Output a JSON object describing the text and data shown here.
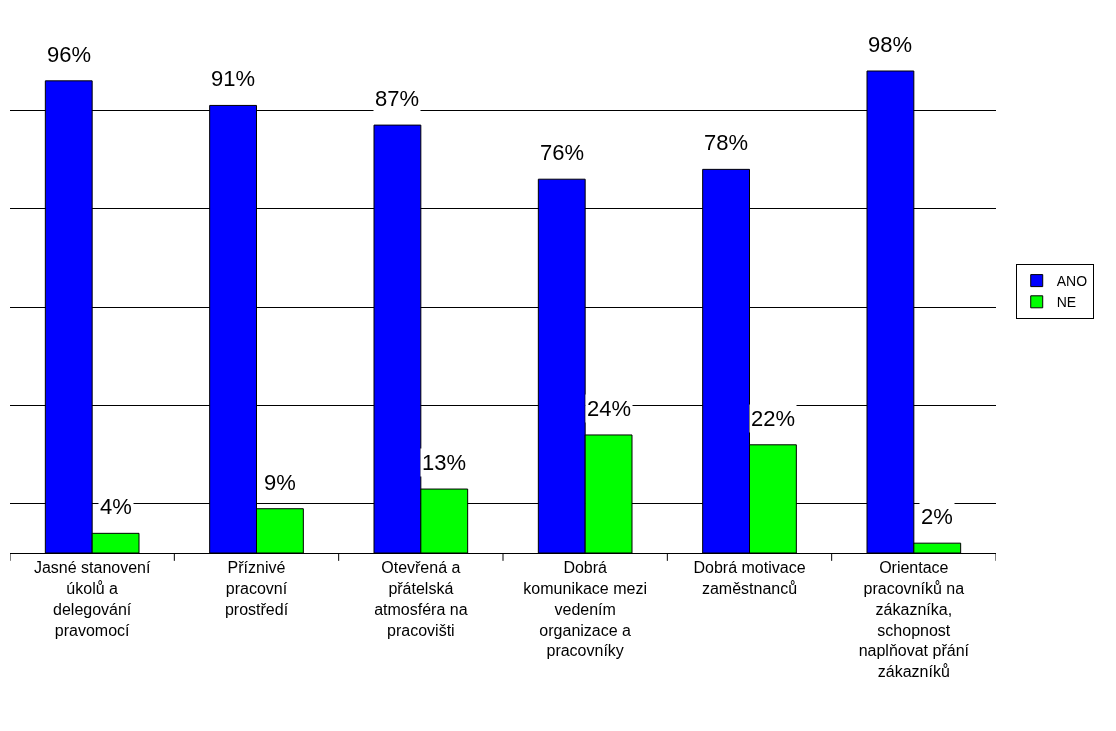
{
  "chart_data": {
    "type": "bar",
    "categories": [
      "Jasné stanovení úkolů a delegování pravomocí",
      "Příznivé pracovní prostředí",
      "Otevřená a přátelská atmosféra na pracovišti",
      "Dobrá komunikace mezi vedením organizace a pracovníky",
      "Dobrá motivace zaměstnanců",
      "Orientace pracovníků na zákazníka, schopnost naplňovat přání zákazníků"
    ],
    "series": [
      {
        "name": "ANO",
        "color": "#0000ff",
        "values": [
          96,
          91,
          87,
          76,
          78,
          98
        ],
        "value_labels": [
          "96%",
          "91%",
          "87%",
          "76%",
          "78%",
          "98%"
        ]
      },
      {
        "name": "NE",
        "color": "#00ff00",
        "values": [
          4,
          9,
          13,
          24,
          22,
          2
        ],
        "value_labels": [
          "4%",
          "9%",
          "13%",
          "24%",
          "22%",
          "2%"
        ]
      }
    ],
    "yticks": [
      {
        "value": 10,
        "label": null
      },
      {
        "value": 30,
        "label": null
      },
      {
        "value": 50,
        "label": null
      },
      {
        "value": 70,
        "label": null
      },
      {
        "value": 90,
        "label": null
      }
    ],
    "grid": "y",
    "legend": "right",
    "tick_labels": "x"
  }
}
